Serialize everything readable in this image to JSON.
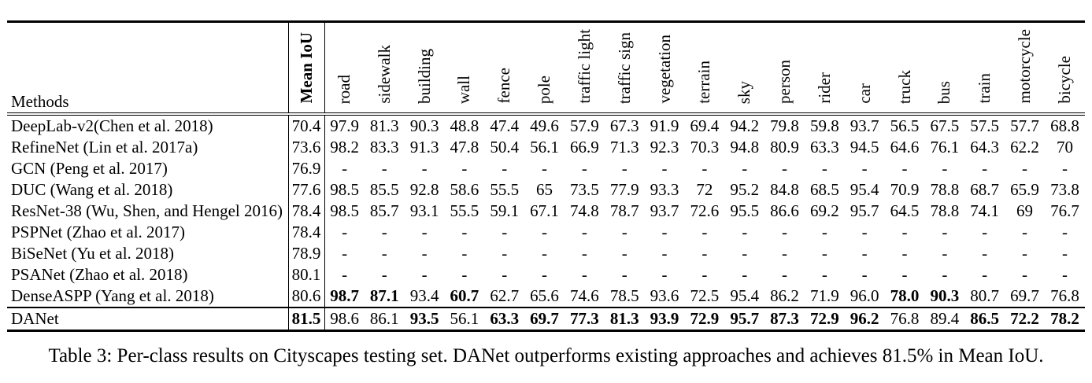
{
  "table": {
    "methods_header": "Methods",
    "mean_iou_header": "Mean IoU",
    "class_headers": [
      "road",
      "sidewalk",
      "building",
      "wall",
      "fence",
      "pole",
      "traffic light",
      "traffic sign",
      "vegetation",
      "terrain",
      "sky",
      "person",
      "rider",
      "car",
      "truck",
      "bus",
      "train",
      "motorcycle",
      "bicycle"
    ],
    "rows": [
      {
        "method": "DeepLab-v2(Chen et al. 2018)",
        "mean_iou": "70.4",
        "mean_bold": false,
        "separator_above": false,
        "values": [
          "97.9",
          "81.3",
          "90.3",
          "48.8",
          "47.4",
          "49.6",
          "57.9",
          "67.3",
          "91.9",
          "69.4",
          "94.2",
          "79.8",
          "59.8",
          "93.7",
          "56.5",
          "67.5",
          "57.5",
          "57.7",
          "68.8"
        ],
        "bold": []
      },
      {
        "method": "RefineNet (Lin et al. 2017a)",
        "mean_iou": "73.6",
        "mean_bold": false,
        "separator_above": false,
        "values": [
          "98.2",
          "83.3",
          "91.3",
          "47.8",
          "50.4",
          "56.1",
          "66.9",
          "71.3",
          "92.3",
          "70.3",
          "94.8",
          "80.9",
          "63.3",
          "94.5",
          "64.6",
          "76.1",
          "64.3",
          "62.2",
          "70"
        ],
        "bold": []
      },
      {
        "method": "GCN (Peng et al. 2017)",
        "mean_iou": "76.9",
        "mean_bold": false,
        "separator_above": false,
        "values": [
          "-",
          "-",
          "-",
          "-",
          "-",
          "-",
          "-",
          "-",
          "-",
          "-",
          "-",
          "-",
          "-",
          "-",
          "-",
          "-",
          "-",
          "-",
          "-"
        ],
        "bold": []
      },
      {
        "method": "DUC (Wang et al. 2018)",
        "mean_iou": "77.6",
        "mean_bold": false,
        "separator_above": false,
        "values": [
          "98.5",
          "85.5",
          "92.8",
          "58.6",
          "55.5",
          "65",
          "73.5",
          "77.9",
          "93.3",
          "72",
          "95.2",
          "84.8",
          "68.5",
          "95.4",
          "70.9",
          "78.8",
          "68.7",
          "65.9",
          "73.8"
        ],
        "bold": []
      },
      {
        "method": "ResNet-38 (Wu, Shen, and Hengel 2016)",
        "mean_iou": "78.4",
        "mean_bold": false,
        "separator_above": false,
        "values": [
          "98.5",
          "85.7",
          "93.1",
          "55.5",
          "59.1",
          "67.1",
          "74.8",
          "78.7",
          "93.7",
          "72.6",
          "95.5",
          "86.6",
          "69.2",
          "95.7",
          "64.5",
          "78.8",
          "74.1",
          "69",
          "76.7"
        ],
        "bold": []
      },
      {
        "method": "PSPNet (Zhao et al. 2017)",
        "mean_iou": "78.4",
        "mean_bold": false,
        "separator_above": false,
        "values": [
          "-",
          "-",
          "-",
          "-",
          "-",
          "-",
          "-",
          "-",
          "-",
          "-",
          "-",
          "-",
          "-",
          "-",
          "-",
          "-",
          "-",
          "-",
          "-"
        ],
        "bold": []
      },
      {
        "method": "BiSeNet (Yu et al. 2018)",
        "mean_iou": "78.9",
        "mean_bold": false,
        "separator_above": false,
        "values": [
          "-",
          "-",
          "-",
          "-",
          "-",
          "-",
          "-",
          "-",
          "-",
          "-",
          "-",
          "-",
          "-",
          "-",
          "-",
          "-",
          "-",
          "-",
          "-"
        ],
        "bold": []
      },
      {
        "method": "PSANet (Zhao et al. 2018)",
        "mean_iou": "80.1",
        "mean_bold": false,
        "separator_above": false,
        "values": [
          "-",
          "-",
          "-",
          "-",
          "-",
          "-",
          "-",
          "-",
          "-",
          "-",
          "-",
          "-",
          "-",
          "-",
          "-",
          "-",
          "-",
          "-",
          "-"
        ],
        "bold": []
      },
      {
        "method": "DenseASPP (Yang et al. 2018)",
        "mean_iou": "80.6",
        "mean_bold": false,
        "separator_above": false,
        "values": [
          "98.7",
          "87.1",
          "93.4",
          "60.7",
          "62.7",
          "65.6",
          "74.6",
          "78.5",
          "93.6",
          "72.5",
          "95.4",
          "86.2",
          "71.9",
          "96.0",
          "78.0",
          "90.3",
          "80.7",
          "69.7",
          "76.8"
        ],
        "bold": [
          0,
          1,
          3,
          14,
          15
        ]
      },
      {
        "method": "DANet",
        "mean_iou": "81.5",
        "mean_bold": true,
        "separator_above": true,
        "values": [
          "98.6",
          "86.1",
          "93.5",
          "56.1",
          "63.3",
          "69.7",
          "77.3",
          "81.3",
          "93.9",
          "72.9",
          "95.7",
          "87.3",
          "72.9",
          "96.2",
          "76.8",
          "89.4",
          "86.5",
          "72.2",
          "78.2"
        ],
        "bold": [
          2,
          4,
          5,
          6,
          7,
          8,
          9,
          10,
          11,
          12,
          13,
          16,
          17,
          18
        ]
      }
    ]
  },
  "caption": "Table 3: Per-class results on Cityscapes testing set. DANet outperforms existing approaches and achieves 81.5% in Mean IoU."
}
